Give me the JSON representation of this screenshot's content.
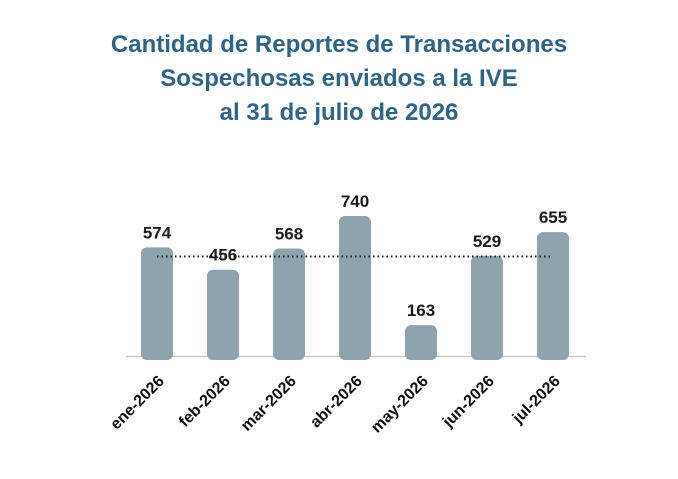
{
  "chart_data": {
    "type": "bar",
    "title_lines": [
      "Cantidad de Reportes de Transacciones",
      "Sospechosas enviados a la IVE",
      "al 31 de julio de 2026"
    ],
    "categories": [
      "ene-2026",
      "feb-2026",
      "mar-2026",
      "abr-2026",
      "may-2026",
      "jun-2026",
      "jul-2026"
    ],
    "values": [
      574,
      456,
      568,
      740,
      163,
      529,
      655
    ],
    "xlabel": "",
    "ylabel": "",
    "ylim": [
      0,
      740
    ],
    "average_line": {
      "style": "dotted",
      "value": 526
    },
    "grid": false,
    "legend": "none",
    "colors": {
      "bar": "#8FA3AF",
      "title": "#2E6487",
      "baseline": "#C8C8C8",
      "average_line": "#1a1a1a"
    }
  }
}
